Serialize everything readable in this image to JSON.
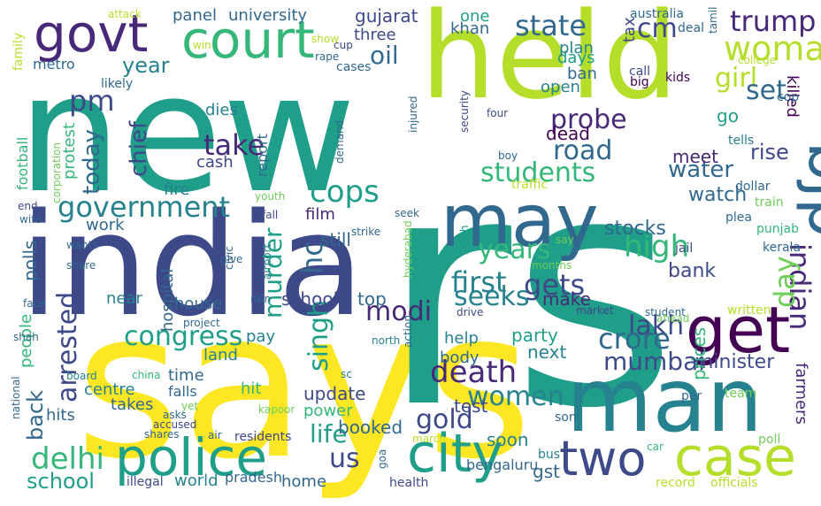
{
  "palette": [
    "#fde725",
    "#b5de2b",
    "#6ece58",
    "#35b779",
    "#1f9e89",
    "#26828e",
    "#31688e",
    "#3e4989",
    "#482878",
    "#440154"
  ],
  "words": [
    {
      "text": "says",
      "c": 0
    },
    {
      "text": "rs",
      "c": 4
    },
    {
      "text": "new",
      "c": 4
    },
    {
      "text": "india",
      "c": 7
    },
    {
      "text": "held",
      "c": 1
    },
    {
      "text": "man",
      "c": 5
    },
    {
      "text": "may",
      "c": 6
    },
    {
      "text": "court",
      "c": 3
    },
    {
      "text": "govt",
      "c": 8
    },
    {
      "text": "police",
      "c": 4
    },
    {
      "text": "city",
      "c": 4
    },
    {
      "text": "case",
      "c": 1
    },
    {
      "text": "two",
      "c": 7
    },
    {
      "text": "get",
      "c": 9
    },
    {
      "text": "bjp",
      "c": 6
    },
    {
      "text": "cm",
      "c": 7
    },
    {
      "text": "woman",
      "c": 1
    },
    {
      "text": "state",
      "c": 6
    },
    {
      "text": "trump",
      "c": 8
    },
    {
      "text": "girl",
      "c": 1
    },
    {
      "text": "oil",
      "c": 6
    },
    {
      "text": "year",
      "c": 5
    },
    {
      "text": "pm",
      "c": 7
    },
    {
      "text": "government",
      "c": 5
    },
    {
      "text": "students",
      "c": 3
    },
    {
      "text": "probe",
      "c": 8
    },
    {
      "text": "road",
      "c": 6
    },
    {
      "text": "water",
      "c": 6
    },
    {
      "text": "take",
      "c": 8
    },
    {
      "text": "chief",
      "c": 7
    },
    {
      "text": "today",
      "c": 6
    },
    {
      "text": "cops",
      "c": 4
    },
    {
      "text": "high",
      "c": 3
    },
    {
      "text": "indian",
      "c": 8
    },
    {
      "text": "day",
      "c": 2
    },
    {
      "text": "years",
      "c": 3
    },
    {
      "text": "first",
      "c": 5
    },
    {
      "text": "gets",
      "c": 7
    },
    {
      "text": "seeks",
      "c": 5
    },
    {
      "text": "hc",
      "c": 6
    },
    {
      "text": "murder",
      "c": 4
    },
    {
      "text": "congress",
      "c": 4
    },
    {
      "text": "lakh",
      "c": 7
    },
    {
      "text": "crore",
      "c": 6
    },
    {
      "text": "modi",
      "c": 8
    },
    {
      "text": "singh",
      "c": 4
    },
    {
      "text": "mumbai",
      "c": 7
    },
    {
      "text": "death",
      "c": 8
    },
    {
      "text": "women",
      "c": 5
    },
    {
      "text": "arrested",
      "c": 7
    },
    {
      "text": "back",
      "c": 6
    },
    {
      "text": "delhi",
      "c": 3
    },
    {
      "text": "school",
      "c": 4
    },
    {
      "text": "gold",
      "c": 7
    },
    {
      "text": "life",
      "c": 4
    },
    {
      "text": "us",
      "c": 7
    },
    {
      "text": "set",
      "c": 6
    },
    {
      "text": "go",
      "c": 4
    },
    {
      "text": "killed",
      "c": 9
    },
    {
      "text": "rise",
      "c": 7
    },
    {
      "text": "meet",
      "c": 8
    },
    {
      "text": "watch",
      "c": 6
    },
    {
      "text": "dead",
      "c": 9
    },
    {
      "text": "stocks",
      "c": 6
    },
    {
      "text": "bank",
      "c": 7
    },
    {
      "text": "film",
      "c": 8
    },
    {
      "text": "still",
      "c": 6
    },
    {
      "text": "schools",
      "c": 7
    },
    {
      "text": "top",
      "c": 6
    },
    {
      "text": "make",
      "c": 8
    },
    {
      "text": "party",
      "c": 4
    },
    {
      "text": "next",
      "c": 5
    },
    {
      "text": "minister",
      "c": 7
    },
    {
      "text": "prices",
      "c": 3
    },
    {
      "text": "farmers",
      "c": 8
    },
    {
      "text": "help",
      "c": 5
    },
    {
      "text": "body",
      "c": 6
    },
    {
      "text": "update",
      "c": 7
    },
    {
      "text": "power",
      "c": 3
    },
    {
      "text": "booked",
      "c": 6
    },
    {
      "text": "test",
      "c": 7
    },
    {
      "text": "soon",
      "c": 5
    },
    {
      "text": "gst",
      "c": 6
    },
    {
      "text": "panel",
      "c": 6
    },
    {
      "text": "university",
      "c": 6
    },
    {
      "text": "gujarat",
      "c": 7
    },
    {
      "text": "three",
      "c": 7
    },
    {
      "text": "khan",
      "c": 6
    },
    {
      "text": "one",
      "c": 4
    },
    {
      "text": "days",
      "c": 4
    },
    {
      "text": "plan",
      "c": 5
    },
    {
      "text": "ban",
      "c": 6
    },
    {
      "text": "open",
      "c": 5
    },
    {
      "text": "tax",
      "c": 7
    },
    {
      "text": "metro",
      "c": 6
    },
    {
      "text": "dies",
      "c": 5
    },
    {
      "text": "cash",
      "c": 7
    },
    {
      "text": "fire",
      "c": 5
    },
    {
      "text": "protest",
      "c": 3
    },
    {
      "text": "report",
      "c": 6
    },
    {
      "text": "football",
      "c": 3
    },
    {
      "text": "work",
      "c": 6
    },
    {
      "text": "polls",
      "c": 6
    },
    {
      "text": "hospital",
      "c": 6
    },
    {
      "text": "near",
      "c": 5
    },
    {
      "text": "house",
      "c": 6
    },
    {
      "text": "pay",
      "c": 5
    },
    {
      "text": "land",
      "c": 5
    },
    {
      "text": "time",
      "c": 6
    },
    {
      "text": "falls",
      "c": 6
    },
    {
      "text": "hit",
      "c": 3
    },
    {
      "text": "centre",
      "c": 5
    },
    {
      "text": "takes",
      "c": 6
    },
    {
      "text": "hits",
      "c": 6
    },
    {
      "text": "people",
      "c": 3
    },
    {
      "text": "world",
      "c": 5
    },
    {
      "text": "home",
      "c": 6
    },
    {
      "text": "pradesh",
      "c": 6
    },
    {
      "text": "bengaluru",
      "c": 6
    },
    {
      "text": "health",
      "c": 7
    },
    {
      "text": "record",
      "c": 1
    },
    {
      "text": "officials",
      "c": 1
    },
    {
      "text": "illegal",
      "c": 7
    },
    {
      "text": "bus",
      "c": 5
    },
    {
      "text": "car",
      "c": 3
    },
    {
      "text": "per",
      "c": 6
    },
    {
      "text": "poll",
      "c": 2
    },
    {
      "text": "team",
      "c": 2
    },
    {
      "text": "son",
      "c": 6
    },
    {
      "text": "written",
      "c": 1
    },
    {
      "text": "punjab",
      "c": 3
    },
    {
      "text": "kerala",
      "c": 6
    },
    {
      "text": "jail",
      "c": 7
    },
    {
      "text": "say",
      "c": 2
    },
    {
      "text": "plea",
      "c": 6
    },
    {
      "text": "train",
      "c": 2
    },
    {
      "text": "dollar",
      "c": 6
    },
    {
      "text": "tells",
      "c": 5
    },
    {
      "text": "cop",
      "c": 6
    },
    {
      "text": "college",
      "c": 1
    },
    {
      "text": "tamil",
      "c": 6
    },
    {
      "text": "kids",
      "c": 9
    },
    {
      "text": "big",
      "c": 9
    },
    {
      "text": "call",
      "c": 7
    },
    {
      "text": "deal",
      "c": 6
    },
    {
      "text": "australia",
      "c": 6
    },
    {
      "text": "attack",
      "c": 1
    },
    {
      "text": "family",
      "c": 1
    },
    {
      "text": "win",
      "c": 1
    },
    {
      "text": "show",
      "c": 1
    },
    {
      "text": "cup",
      "c": 7
    },
    {
      "text": "rape",
      "c": 6
    },
    {
      "text": "cases",
      "c": 6
    },
    {
      "text": "likely",
      "c": 6
    },
    {
      "text": "injured",
      "c": 6
    },
    {
      "text": "security",
      "c": 7
    },
    {
      "text": "four",
      "c": 7
    },
    {
      "text": "boy",
      "c": 6
    },
    {
      "text": "traffic",
      "c": 1
    },
    {
      "text": "demand",
      "c": 6
    },
    {
      "text": "corporation",
      "c": 2
    },
    {
      "text": "youth",
      "c": 2
    },
    {
      "text": "end",
      "c": 7
    },
    {
      "text": "wife",
      "c": 6
    },
    {
      "text": "fall",
      "c": 7
    },
    {
      "text": "seek",
      "c": 6
    },
    {
      "text": "strike",
      "c": 6
    },
    {
      "text": "wants",
      "c": 6
    },
    {
      "text": "civic",
      "c": 6
    },
    {
      "text": "airport",
      "c": 5
    },
    {
      "text": "give",
      "c": 6
    },
    {
      "text": "share",
      "c": 6
    },
    {
      "text": "hyderabad",
      "c": 2
    },
    {
      "text": "action",
      "c": 6
    },
    {
      "text": "south",
      "c": 4
    },
    {
      "text": "months",
      "c": 2
    },
    {
      "text": "face",
      "c": 6
    },
    {
      "text": "rain",
      "c": 6
    },
    {
      "text": "project",
      "c": 6
    },
    {
      "text": "drive",
      "c": 7
    },
    {
      "text": "market",
      "c": 7
    },
    {
      "text": "student",
      "c": 6
    },
    {
      "text": "ahead",
      "c": 2
    },
    {
      "text": "shah",
      "c": 6
    },
    {
      "text": "china",
      "c": 3
    },
    {
      "text": "north",
      "c": 5
    },
    {
      "text": "board",
      "c": 5
    },
    {
      "text": "national",
      "c": 6
    },
    {
      "text": "sc",
      "c": 5
    },
    {
      "text": "kapoor",
      "c": 2
    },
    {
      "text": "yet",
      "c": 2
    },
    {
      "text": "asks",
      "c": 6
    },
    {
      "text": "accused",
      "c": 7
    },
    {
      "text": "shares",
      "c": 6
    },
    {
      "text": "air",
      "c": 6
    },
    {
      "text": "residents",
      "c": 7
    },
    {
      "text": "march",
      "c": 1
    },
    {
      "text": "goa",
      "c": 6
    }
  ]
}
